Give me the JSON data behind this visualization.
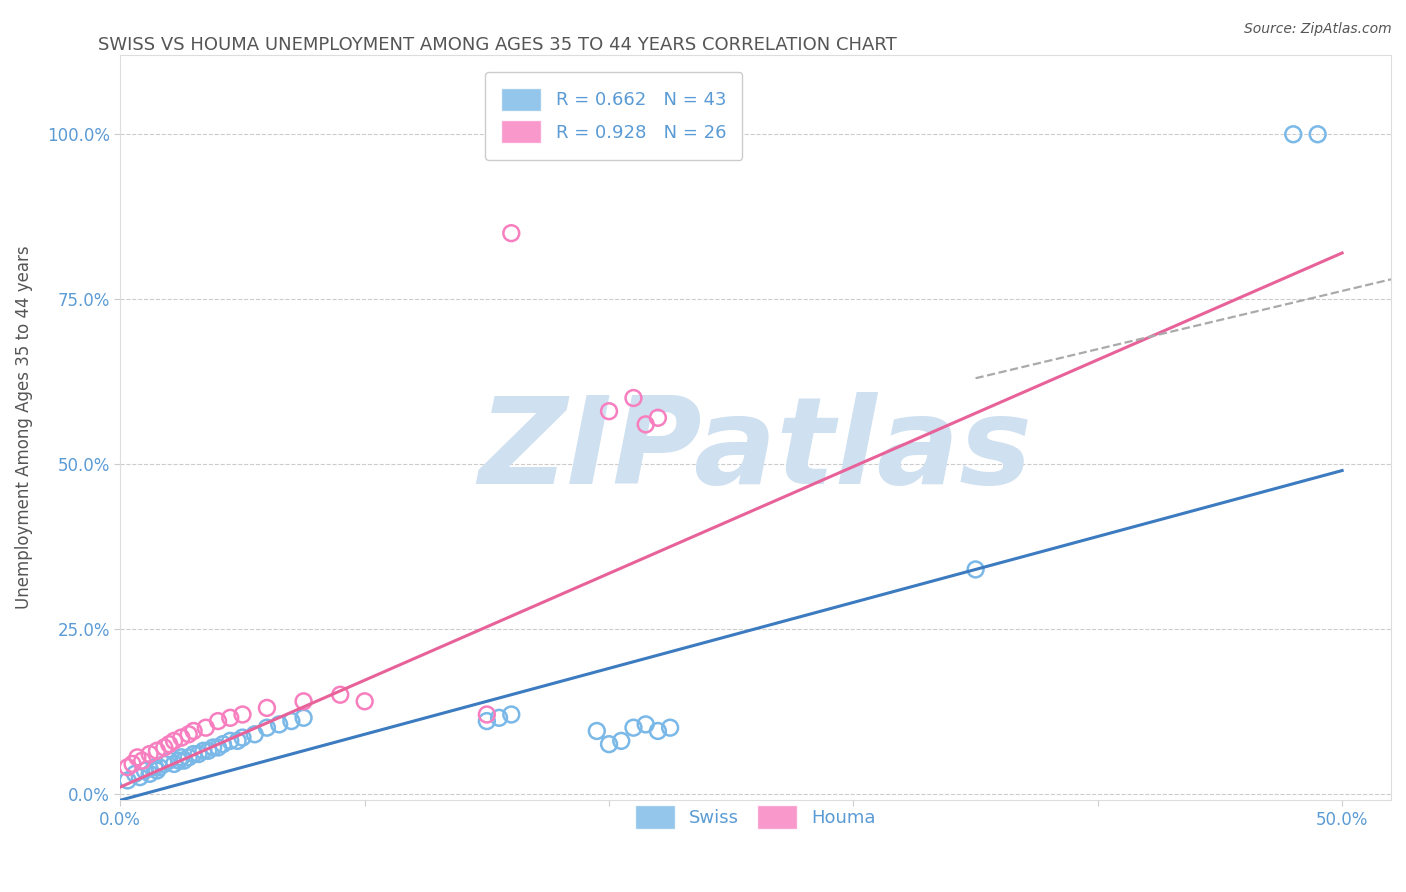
{
  "title": "SWISS VS HOUMA UNEMPLOYMENT AMONG AGES 35 TO 44 YEARS CORRELATION CHART",
  "source": "Source: ZipAtlas.com",
  "ylabel": "Unemployment Among Ages 35 to 44 years",
  "xlim": [
    0.0,
    0.52
  ],
  "ylim": [
    -0.01,
    1.12
  ],
  "xtick_vals": [
    0.0,
    0.1,
    0.2,
    0.3,
    0.4,
    0.5
  ],
  "xtick_labels": [
    "0.0%",
    "",
    "",
    "",
    "",
    "50.0%"
  ],
  "ytick_vals": [
    0.0,
    0.25,
    0.5,
    0.75,
    1.0
  ],
  "ytick_labels": [
    "0.0%",
    "25.0%",
    "50.0%",
    "75.0%",
    "100.0%"
  ],
  "swiss_color": "#7ab8e8",
  "houma_color": "#f77fbf",
  "swiss_line_color": "#3c7bbf",
  "houma_line_color": "#e8629a",
  "swiss_R": 0.662,
  "swiss_N": 43,
  "houma_R": 0.928,
  "houma_N": 26,
  "watermark": "ZIPatlas",
  "watermark_color": "#cfe0f0",
  "swiss_points_x": [
    0.003,
    0.006,
    0.008,
    0.01,
    0.012,
    0.014,
    0.015,
    0.016,
    0.018,
    0.02,
    0.022,
    0.024,
    0.025,
    0.026,
    0.028,
    0.03,
    0.032,
    0.034,
    0.036,
    0.038,
    0.04,
    0.042,
    0.045,
    0.048,
    0.05,
    0.055,
    0.06,
    0.065,
    0.07,
    0.075,
    0.15,
    0.155,
    0.16,
    0.195,
    0.2,
    0.205,
    0.21,
    0.215,
    0.22,
    0.225,
    0.35,
    0.48,
    0.49
  ],
  "swiss_points_y": [
    0.02,
    0.03,
    0.025,
    0.035,
    0.03,
    0.04,
    0.035,
    0.04,
    0.045,
    0.05,
    0.045,
    0.05,
    0.055,
    0.05,
    0.055,
    0.06,
    0.06,
    0.065,
    0.065,
    0.07,
    0.07,
    0.075,
    0.08,
    0.08,
    0.085,
    0.09,
    0.1,
    0.105,
    0.11,
    0.115,
    0.11,
    0.115,
    0.12,
    0.095,
    0.075,
    0.08,
    0.1,
    0.105,
    0.095,
    0.1,
    0.34,
    1.0,
    1.0
  ],
  "houma_points_x": [
    0.003,
    0.005,
    0.007,
    0.009,
    0.012,
    0.015,
    0.018,
    0.02,
    0.022,
    0.025,
    0.028,
    0.03,
    0.035,
    0.04,
    0.045,
    0.05,
    0.06,
    0.075,
    0.09,
    0.1,
    0.15,
    0.16,
    0.2,
    0.21,
    0.215,
    0.22
  ],
  "houma_points_y": [
    0.04,
    0.045,
    0.055,
    0.05,
    0.06,
    0.065,
    0.07,
    0.075,
    0.08,
    0.085,
    0.09,
    0.095,
    0.1,
    0.11,
    0.115,
    0.12,
    0.13,
    0.14,
    0.15,
    0.14,
    0.12,
    0.85,
    0.58,
    0.6,
    0.56,
    0.57
  ],
  "swiss_line_x0": 0.0,
  "swiss_line_x1": 0.5,
  "swiss_line_y0": -0.01,
  "swiss_line_y1": 0.49,
  "houma_line_x0": 0.0,
  "houma_line_x1": 0.5,
  "houma_line_y0": 0.01,
  "houma_line_y1": 0.82,
  "dashed_line_x0": 0.35,
  "dashed_line_x1": 0.52,
  "dashed_line_y0": 0.63,
  "dashed_line_y1": 0.78,
  "grid_color": "#cccccc",
  "axis_label_color": "#5b9bd5",
  "title_color": "#555555",
  "bg_color": "#ffffff"
}
